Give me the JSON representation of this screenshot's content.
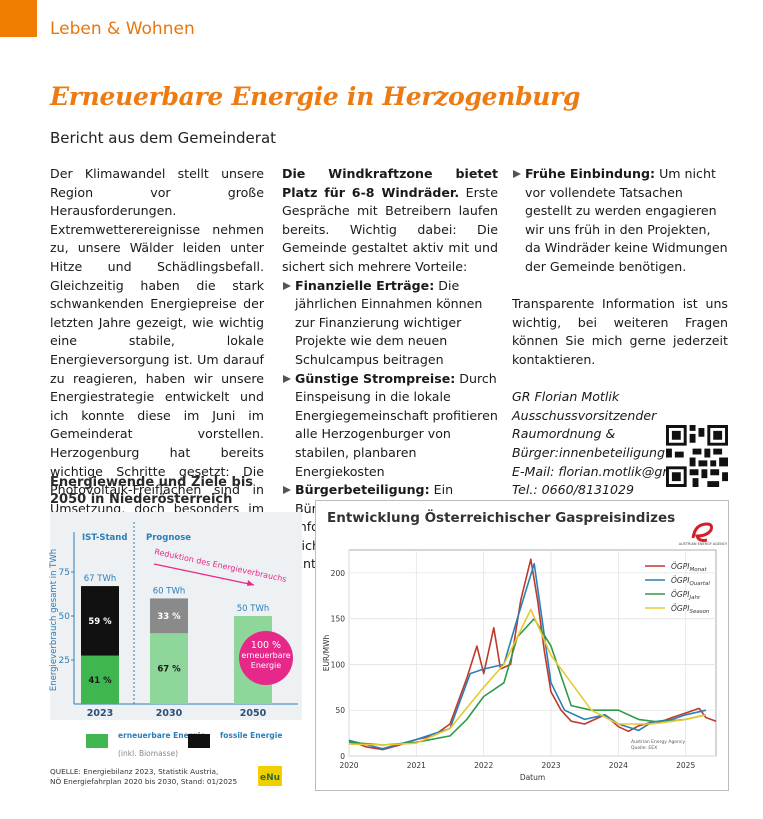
{
  "header": {
    "section": "Leben & Wohnen",
    "title": "Erneuerbare Energie in Herzogenburg",
    "subtitle": "Bericht aus dem Gemeinderat"
  },
  "columns": [
    {
      "paragraphs": [
        "Der Klimawandel stellt unsere Region vor große Herausforderungen. Extremwetterereignisse nehmen zu, unsere Wälder leiden unter Hitze und Schädlingsbefall. Gleichzeitig haben die stark schwankenden Energiepreise der letzten Jahre gezeigt, wie wichtig eine stabile, lokale Energieversorgung ist. Um darauf zu reagieren, haben wir unsere Energiestrategie entwickelt und ich konnte diese im Juni im Gemeinderat vorstellen. Herzogenburg hat bereits wichtige Schritte gesetzt: Die Photovoltaik-Freiflächen sind in Umsetzung, doch besonders im Winter reicht Solarstrom allein nicht aus. Windkraft bietet hier die ideale Ergänzung."
      ]
    },
    {
      "lead": "Die Windkraftzone bietet Platz für 6-8 Windräder.",
      "intro": "Erste Gespräche mit Betreibern laufen bereits. Wichtig dabei: Die Gemeinde gestaltet aktiv mit und sichert sich mehrere Vorteile:",
      "bullets": [
        {
          "head": "Finanzielle Erträge:",
          "text": "Die jährlichen Einnahmen können zur Finanzierung wichtiger Projekte wie dem neuen Schulcampus beitragen"
        },
        {
          "head": "Günstige Strompreise:",
          "text": "Durch Einspeisung in die lokale Energiegemeinschaft profitieren alle Herzogenburger von stabilen, planbaren Energiekosten"
        },
        {
          "head": "Bürgerbeteiligung:",
          "text": "Ein Bürgerrat und Informationsveranstaltungen sichern transparente Entscheidungen"
        }
      ]
    },
    {
      "bullets": [
        {
          "head": "Frühe Einbindung:",
          "text": "Um nicht vor vollendete Tatsachen gestellt zu werden engagieren wir uns früh in den Projekten, da Windräder keine Widmungen der Gemeinde benötigen."
        }
      ],
      "paragraphs": [
        "Transparente Information ist uns wichtig, bei weiteren Fragen können Sie mich gerne jederzeit kontaktieren."
      ],
      "signature": [
        "GR Florian Motlik",
        "Ausschussvorsitzender Raumordnung &",
        "Bürger:innenbeteiligung",
        "E-Mail: florian.motlik@gruene.at",
        "Tel.: 0660/8131029"
      ]
    }
  ],
  "chart_data": [
    {
      "type": "stacked-bar",
      "title": "Energiewende und Ziele bis 2050 in Niederösterreich",
      "ylabel": "Energieverbrauch gesamt in TWh",
      "phases": [
        "IST-Stand",
        "Prognose"
      ],
      "annotation": "Reduktion des Energieverbrauchs",
      "target_label": [
        "100 %",
        "erneuerbare",
        "Energie"
      ],
      "categories": [
        "2023",
        "2030",
        "2050"
      ],
      "series": [
        {
          "name": "erneuerbare Energie",
          "note": "(inkl. Biomasse)",
          "color": "#3fb650",
          "colors": [
            "#3fb650",
            "#8ed69a",
            "#8ed69a"
          ],
          "values": [
            27.47,
            40.2,
            50
          ],
          "share_labels": [
            "41 %",
            "67 %",
            null
          ]
        },
        {
          "name": "fossile Energie",
          "color": "#111111",
          "colors": [
            "#111111",
            "#8a8a8a",
            "#8a8a8a"
          ],
          "values": [
            39.53,
            19.8,
            0
          ],
          "share_labels": [
            "59 %",
            "33 %",
            null
          ]
        }
      ],
      "total_labels": [
        "67 TWh",
        "60 TWh",
        "50 TWh"
      ],
      "ylim": [
        0,
        100
      ],
      "yticks": [
        25,
        50,
        75
      ],
      "source": [
        "QUELLE: Energiebilanz 2023, Statistik Austria,",
        "NÖ Energiefahrplan 2020 bis 2030, Stand: 01/2025"
      ],
      "logo": "eNu"
    },
    {
      "type": "line",
      "title": "Entwicklung Österreichischer Gaspreisindizes",
      "ylabel": "EUR/MWh",
      "xlabel": "Datum",
      "logo": "AUSTRIAN ENERGY AGENCY",
      "note": [
        "Austrian Energy Agency",
        "Quelle: EEX"
      ],
      "xlim": [
        2020,
        2025.45
      ],
      "xticks": [
        2020,
        2021,
        2022,
        2023,
        2024,
        2025
      ],
      "ylim": [
        0,
        225
      ],
      "yticks": [
        0,
        50,
        100,
        150,
        200
      ],
      "grid": true,
      "legend": "upper-right",
      "series": [
        {
          "name": "ÖGPI",
          "subscript": "Monat",
          "color": "#c0392b",
          "x": [
            2020,
            2020.25,
            2020.5,
            2020.75,
            2021,
            2021.25,
            2021.5,
            2021.75,
            2021.9,
            2022,
            2022.15,
            2022.25,
            2022.4,
            2022.55,
            2022.7,
            2022.8,
            2022.9,
            2023,
            2023.15,
            2023.3,
            2023.5,
            2023.65,
            2023.8,
            2024,
            2024.15,
            2024.3,
            2024.5,
            2024.65,
            2024.8,
            2025,
            2025.2,
            2025.3,
            2025.45
          ],
          "values": [
            17,
            10,
            7,
            12,
            18,
            22,
            35,
            85,
            120,
            90,
            140,
            95,
            100,
            170,
            215,
            170,
            115,
            70,
            50,
            38,
            35,
            40,
            45,
            32,
            27,
            33,
            37,
            38,
            42,
            47,
            52,
            42,
            38
          ]
        },
        {
          "name": "ÖGPI",
          "subscript": "Quartal",
          "color": "#2a7fb8",
          "x": [
            2020,
            2020.5,
            2021,
            2021.5,
            2021.8,
            2022,
            2022.3,
            2022.5,
            2022.75,
            2023,
            2023.2,
            2023.5,
            2023.8,
            2024,
            2024.3,
            2024.5,
            2024.8,
            2025,
            2025.3
          ],
          "values": [
            17,
            8,
            18,
            30,
            90,
            95,
            100,
            150,
            210,
            80,
            50,
            40,
            45,
            35,
            28,
            37,
            40,
            45,
            50
          ]
        },
        {
          "name": "ÖGPI",
          "subscript": "Jahr",
          "color": "#2e9a48",
          "x": [
            2020,
            2020.5,
            2021,
            2021.5,
            2021.75,
            2022,
            2022.3,
            2022.5,
            2022.75,
            2023,
            2023.3,
            2023.6,
            2024,
            2024.3,
            2024.6,
            2025,
            2025.3
          ],
          "values": [
            15,
            12,
            15,
            22,
            40,
            65,
            80,
            130,
            150,
            120,
            55,
            50,
            50,
            40,
            37,
            40,
            45
          ]
        },
        {
          "name": "ÖGPI",
          "subscript": "Season",
          "color": "#e8c830",
          "x": [
            2020,
            2020.5,
            2021,
            2021.5,
            2022,
            2022.3,
            2022.7,
            2023,
            2023.3,
            2023.6,
            2024,
            2024.5,
            2025,
            2025.3
          ],
          "values": [
            13,
            12,
            14,
            30,
            75,
            100,
            160,
            110,
            80,
            50,
            35,
            35,
            40,
            45
          ]
        }
      ]
    }
  ]
}
